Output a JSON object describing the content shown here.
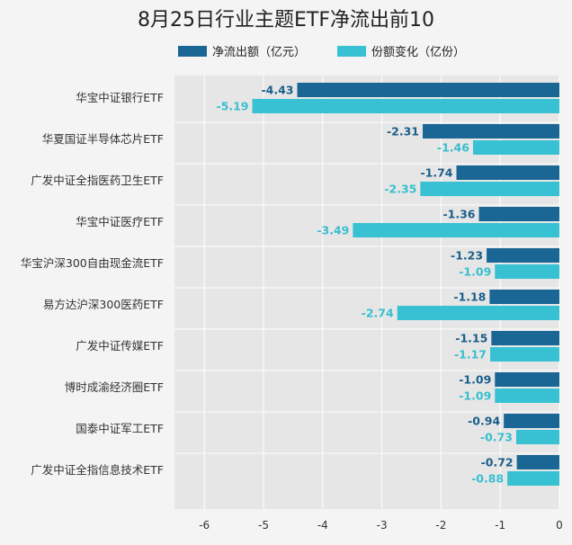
{
  "chart_data": {
    "type": "bar",
    "orientation": "horizontal",
    "title": "8月25日行业主题ETF净流出前10",
    "xlabel": "",
    "ylabel": "",
    "xlim": [
      -6.6,
      0
    ],
    "xticks": [
      "-6",
      "-5",
      "-4",
      "-3",
      "-2",
      "-1",
      "0"
    ],
    "xtick_values": [
      -6,
      -5,
      -4,
      -3,
      -2,
      -1,
      0
    ],
    "grid": true,
    "legend_position": "top",
    "categories": [
      "华宝中证银行ETF",
      "华夏国证半导体芯片ETF",
      "广发中证全指医药卫生ETF",
      "华宝中证医疗ETF",
      "华宝沪深300自由现金流ETF",
      "易方达沪深300医药ETF",
      "广发中证传媒ETF",
      "博时成渝经济圈ETF",
      "国泰中证军工ETF",
      "广发中证全指信息技术ETF"
    ],
    "series": [
      {
        "name": "净流出额（亿元）",
        "color": "#1a6796",
        "label_color": "#1a5e8a",
        "values": [
          -4.43,
          -2.31,
          -1.74,
          -1.36,
          -1.23,
          -1.18,
          -1.15,
          -1.09,
          -0.94,
          -0.72
        ],
        "labels": [
          "-4.43",
          "-2.31",
          "-1.74",
          "-1.36",
          "-1.23",
          "-1.18",
          "-1.15",
          "-1.09",
          "-0.94",
          "-0.72"
        ]
      },
      {
        "name": "份额变化（亿份）",
        "color": "#37c1d3",
        "label_color": "#37bfd0",
        "values": [
          -5.19,
          -1.46,
          -2.35,
          -3.49,
          -1.09,
          -2.74,
          -1.17,
          -1.09,
          -0.73,
          -0.88
        ],
        "labels": [
          "-5.19",
          "-1.46",
          "-2.35",
          "-3.49",
          "-1.09",
          "-2.74",
          "-1.17",
          "-1.09",
          "-0.73",
          "-0.88"
        ]
      }
    ],
    "colors": {
      "plot_background": "#e6e6e6",
      "grid": "#ffffff"
    }
  }
}
